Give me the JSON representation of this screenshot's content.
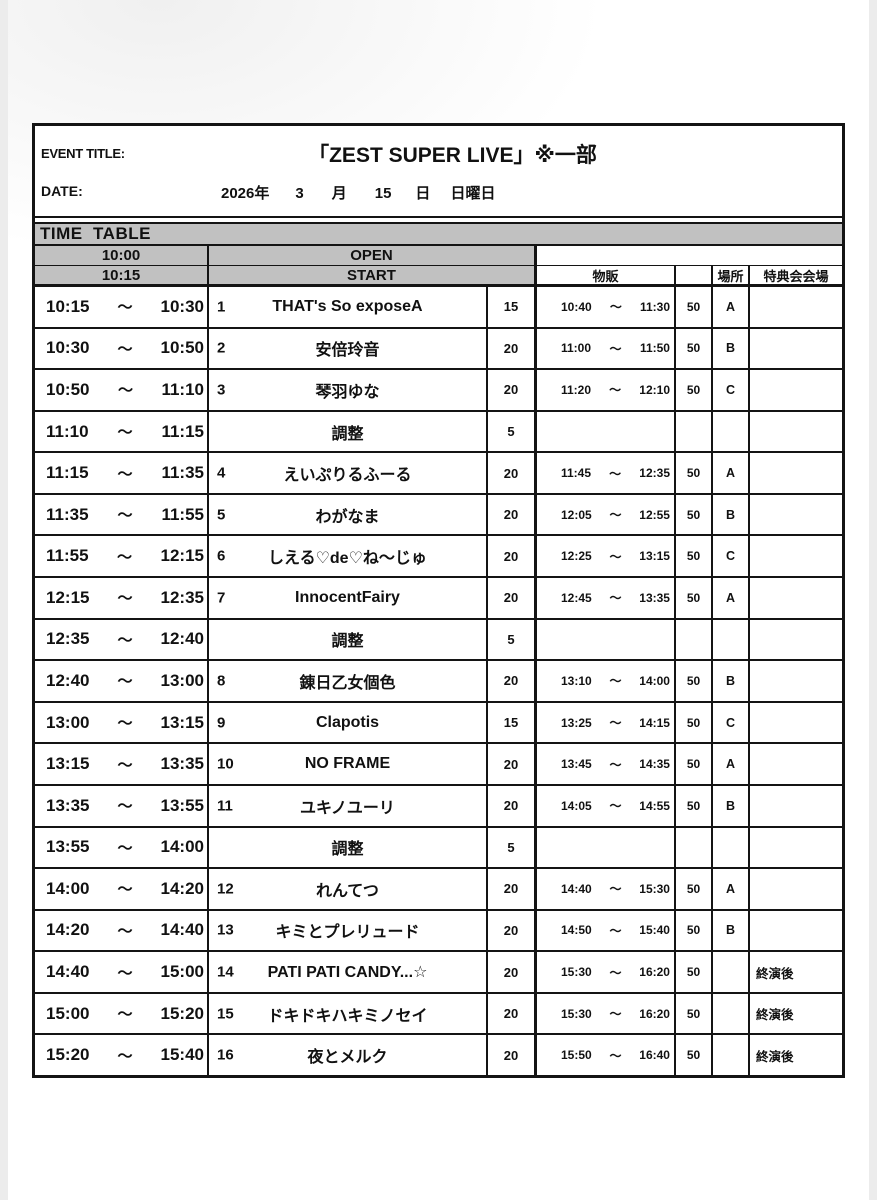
{
  "header": {
    "event_title_label": "EVENT TITLE:",
    "event_title": "「ZEST SUPER LIVE」※一部",
    "date_label": "DATE:",
    "date_parts": [
      "2026年",
      "3",
      "月",
      "15",
      "日",
      "日曜日"
    ]
  },
  "timetable": {
    "section_label": "TIME  TABLE",
    "tilde": "～",
    "open_row": {
      "time": "10:00",
      "label": "OPEN"
    },
    "start_row": {
      "time": "10:15",
      "label": "START",
      "merch_header": "物販",
      "place_header": "場所",
      "tokuten_header": "特典会会場"
    },
    "rows": [
      {
        "start": "10:15",
        "end": "10:30",
        "num": "1",
        "name": "THAT's So exposeA",
        "dur": "15",
        "m_start": "10:40",
        "m_end": "11:30",
        "m_cap": "50",
        "place": "A",
        "tokuten": ""
      },
      {
        "start": "10:30",
        "end": "10:50",
        "num": "2",
        "name": "安倍玲音",
        "dur": "20",
        "m_start": "11:00",
        "m_end": "11:50",
        "m_cap": "50",
        "place": "B",
        "tokuten": ""
      },
      {
        "start": "10:50",
        "end": "11:10",
        "num": "3",
        "name": "琴羽ゆな",
        "dur": "20",
        "m_start": "11:20",
        "m_end": "12:10",
        "m_cap": "50",
        "place": "C",
        "tokuten": ""
      },
      {
        "start": "11:10",
        "end": "11:15",
        "num": "",
        "name": "調整",
        "dur": "5",
        "m_start": "",
        "m_end": "",
        "m_cap": "",
        "place": "",
        "tokuten": ""
      },
      {
        "start": "11:15",
        "end": "11:35",
        "num": "4",
        "name": "えいぷりるふーる",
        "dur": "20",
        "m_start": "11:45",
        "m_end": "12:35",
        "m_cap": "50",
        "place": "A",
        "tokuten": ""
      },
      {
        "start": "11:35",
        "end": "11:55",
        "num": "5",
        "name": "わがなま",
        "dur": "20",
        "m_start": "12:05",
        "m_end": "12:55",
        "m_cap": "50",
        "place": "B",
        "tokuten": ""
      },
      {
        "start": "11:55",
        "end": "12:15",
        "num": "6",
        "name": "しえる♡de♡ね～じゅ",
        "dur": "20",
        "m_start": "12:25",
        "m_end": "13:15",
        "m_cap": "50",
        "place": "C",
        "tokuten": ""
      },
      {
        "start": "12:15",
        "end": "12:35",
        "num": "7",
        "name": "InnocentFairy",
        "dur": "20",
        "m_start": "12:45",
        "m_end": "13:35",
        "m_cap": "50",
        "place": "A",
        "tokuten": ""
      },
      {
        "start": "12:35",
        "end": "12:40",
        "num": "",
        "name": "調整",
        "dur": "5",
        "m_start": "",
        "m_end": "",
        "m_cap": "",
        "place": "",
        "tokuten": ""
      },
      {
        "start": "12:40",
        "end": "13:00",
        "num": "8",
        "name": "錬日乙女個色",
        "dur": "20",
        "m_start": "13:10",
        "m_end": "14:00",
        "m_cap": "50",
        "place": "B",
        "tokuten": ""
      },
      {
        "start": "13:00",
        "end": "13:15",
        "num": "9",
        "name": "Clapotis",
        "dur": "15",
        "m_start": "13:25",
        "m_end": "14:15",
        "m_cap": "50",
        "place": "C",
        "tokuten": ""
      },
      {
        "start": "13:15",
        "end": "13:35",
        "num": "10",
        "name": "NO FRAME",
        "dur": "20",
        "m_start": "13:45",
        "m_end": "14:35",
        "m_cap": "50",
        "place": "A",
        "tokuten": ""
      },
      {
        "start": "13:35",
        "end": "13:55",
        "num": "11",
        "name": "ユキノユーリ",
        "dur": "20",
        "m_start": "14:05",
        "m_end": "14:55",
        "m_cap": "50",
        "place": "B",
        "tokuten": ""
      },
      {
        "start": "13:55",
        "end": "14:00",
        "num": "",
        "name": "調整",
        "dur": "5",
        "m_start": "",
        "m_end": "",
        "m_cap": "",
        "place": "",
        "tokuten": ""
      },
      {
        "start": "14:00",
        "end": "14:20",
        "num": "12",
        "name": "れんてつ",
        "dur": "20",
        "m_start": "14:40",
        "m_end": "15:30",
        "m_cap": "50",
        "place": "A",
        "tokuten": ""
      },
      {
        "start": "14:20",
        "end": "14:40",
        "num": "13",
        "name": "キミとプレリュード",
        "dur": "20",
        "m_start": "14:50",
        "m_end": "15:40",
        "m_cap": "50",
        "place": "B",
        "tokuten": ""
      },
      {
        "start": "14:40",
        "end": "15:00",
        "num": "14",
        "name": "PATI PATI CANDY...☆",
        "dur": "20",
        "m_start": "15:30",
        "m_end": "16:20",
        "m_cap": "50",
        "place": "",
        "tokuten": "終演後"
      },
      {
        "start": "15:00",
        "end": "15:20",
        "num": "15",
        "name": "ドキドキハキミノセイ",
        "dur": "20",
        "m_start": "15:30",
        "m_end": "16:20",
        "m_cap": "50",
        "place": "",
        "tokuten": "終演後"
      },
      {
        "start": "15:20",
        "end": "15:40",
        "num": "16",
        "name": "夜とメルク",
        "dur": "20",
        "m_start": "15:50",
        "m_end": "16:40",
        "m_cap": "50",
        "place": "",
        "tokuten": "終演後"
      }
    ]
  },
  "colors": {
    "header_gray": "#c1c1c1",
    "line": "#141414",
    "paper": "#ffffff"
  }
}
